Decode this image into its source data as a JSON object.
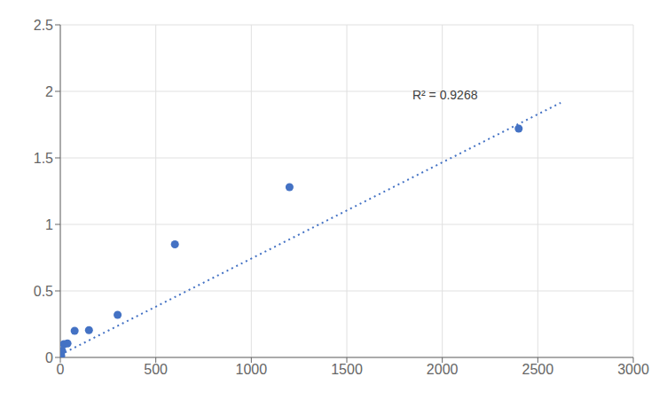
{
  "chart_data": {
    "type": "scatter",
    "series": [
      {
        "type": "scatter",
        "color": "#4472C4",
        "marker": "circle",
        "x": [
          4.69,
          9.38,
          18.75,
          37.5,
          75,
          150,
          300,
          600,
          1200,
          2400
        ],
        "values": [
          0.013,
          0.05,
          0.1,
          0.105,
          0.2,
          0.205,
          0.32,
          0.85,
          1.28,
          1.72
        ]
      },
      {
        "type": "line",
        "color": "#4472C4",
        "line_style": "dotted",
        "x": [
          0,
          2620
        ],
        "values": [
          0.02,
          1.91426
        ]
      }
    ],
    "annotations": [
      {
        "text": "R² = 0.9268",
        "x": 1820,
        "y": 1.97
      }
    ],
    "xlim": [
      0,
      3000
    ],
    "xticks": [
      0,
      500,
      1000,
      1500,
      2000,
      2500,
      3000
    ],
    "ylim": [
      0,
      2.5
    ],
    "yticks": [
      0,
      0.5,
      1,
      1.5,
      2,
      2.5
    ],
    "grid": true
  }
}
